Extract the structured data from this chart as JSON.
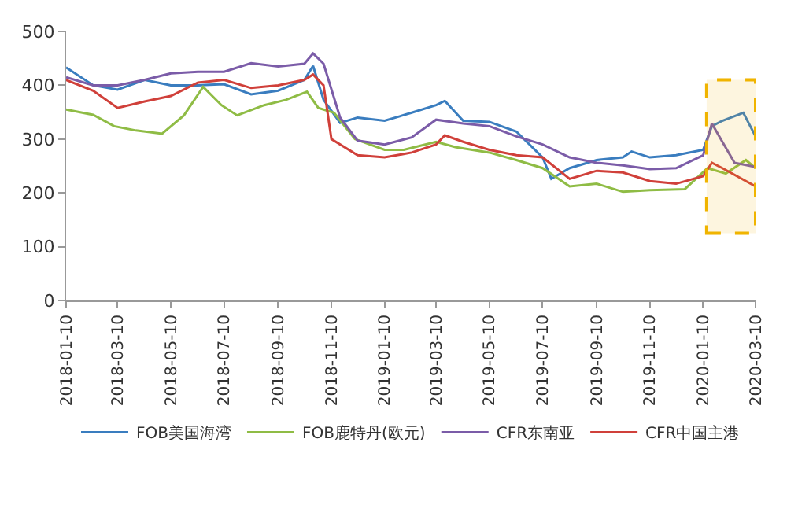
{
  "chart_data": {
    "type": "line",
    "ylim": [
      0,
      500
    ],
    "yticks": [
      0,
      100,
      200,
      300,
      400,
      500
    ],
    "xlim": [
      "2018-01-10",
      "2020-03-10"
    ],
    "xticks": [
      "2018-01-10",
      "2018-03-10",
      "2018-05-10",
      "2018-07-10",
      "2018-09-10",
      "2018-11-10",
      "2019-01-10",
      "2019-03-10",
      "2019-05-10",
      "2019-07-10",
      "2019-09-10",
      "2019-11-10",
      "2020-01-10",
      "2020-03-10"
    ],
    "grid": false,
    "legend": "bottom",
    "marker": "none",
    "line_style": "solid",
    "bands": [
      {
        "axis": "x",
        "from": "2020-01-14",
        "to": "2020-03-10",
        "color": "#f0b400"
      }
    ],
    "series": [
      {
        "name": "FOB美国海湾",
        "color": "#3a7dbf",
        "x": [
          "2018-01-10",
          "2018-02-10",
          "2018-03-10",
          "2018-04-10",
          "2018-05-10",
          "2018-06-10",
          "2018-07-10",
          "2018-08-10",
          "2018-09-10",
          "2018-10-10",
          "2018-10-20",
          "2018-11-01",
          "2018-11-20",
          "2018-12-10",
          "2019-01-10",
          "2019-02-10",
          "2019-03-10",
          "2019-03-20",
          "2019-04-10",
          "2019-05-10",
          "2019-06-10",
          "2019-07-10",
          "2019-07-20",
          "2019-08-10",
          "2019-09-10",
          "2019-10-10",
          "2019-10-20",
          "2019-11-10",
          "2019-12-10",
          "2020-01-10",
          "2020-01-20",
          "2020-02-01",
          "2020-02-25",
          "2020-03-10"
        ],
        "values": [
          433,
          400,
          392,
          410,
          400,
          400,
          402,
          383,
          390,
          410,
          436,
          373,
          330,
          340,
          334,
          349,
          363,
          371,
          334,
          332,
          314,
          266,
          226,
          246,
          261,
          266,
          277,
          266,
          270,
          280,
          324,
          334,
          349,
          305
        ]
      },
      {
        "name": "FOB鹿特丹(欧元)",
        "color": "#8fbc45",
        "x": [
          "2018-01-10",
          "2018-02-10",
          "2018-03-06",
          "2018-03-31",
          "2018-04-30",
          "2018-05-25",
          "2018-06-16",
          "2018-07-07",
          "2018-07-25",
          "2018-08-25",
          "2018-09-19",
          "2018-10-13",
          "2018-10-26",
          "2018-11-13",
          "2018-12-07",
          "2019-01-10",
          "2019-02-01",
          "2019-03-10",
          "2019-04-01",
          "2019-05-10",
          "2019-06-10",
          "2019-07-10",
          "2019-08-10",
          "2019-09-10",
          "2019-10-10",
          "2019-11-10",
          "2019-12-20",
          "2020-01-15",
          "2020-02-05",
          "2020-02-28",
          "2020-03-10"
        ],
        "values": [
          355,
          345,
          324,
          316,
          310,
          344,
          397,
          363,
          344,
          363,
          373,
          388,
          358,
          349,
          300,
          280,
          280,
          295,
          285,
          275,
          261,
          246,
          212,
          217,
          202,
          205,
          207,
          246,
          236,
          261,
          246
        ]
      },
      {
        "name": "CFR东南亚",
        "color": "#7b5ca8",
        "x": [
          "2018-01-10",
          "2018-02-10",
          "2018-03-10",
          "2018-04-10",
          "2018-05-10",
          "2018-06-10",
          "2018-07-10",
          "2018-08-10",
          "2018-09-10",
          "2018-10-10",
          "2018-10-20",
          "2018-11-01",
          "2018-11-20",
          "2018-12-10",
          "2019-01-10",
          "2019-02-10",
          "2019-03-10",
          "2019-04-10",
          "2019-05-10",
          "2019-06-10",
          "2019-07-10",
          "2019-08-10",
          "2019-09-10",
          "2019-10-10",
          "2019-11-10",
          "2019-12-10",
          "2020-01-10",
          "2020-01-20",
          "2020-02-01",
          "2020-02-15",
          "2020-03-10"
        ],
        "values": [
          415,
          400,
          400,
          410,
          422,
          425,
          425,
          441,
          435,
          440,
          459,
          440,
          340,
          297,
          290,
          303,
          336,
          329,
          324,
          305,
          290,
          266,
          256,
          251,
          244,
          246,
          270,
          329,
          295,
          256,
          248
        ]
      },
      {
        "name": "CFR中国主港",
        "color": "#d0403a",
        "x": [
          "2018-01-10",
          "2018-02-10",
          "2018-03-10",
          "2018-04-10",
          "2018-05-10",
          "2018-06-10",
          "2018-07-10",
          "2018-08-10",
          "2018-09-10",
          "2018-10-10",
          "2018-10-20",
          "2018-11-01",
          "2018-11-10",
          "2018-12-10",
          "2019-01-10",
          "2019-02-10",
          "2019-03-10",
          "2019-03-20",
          "2019-04-10",
          "2019-05-10",
          "2019-06-10",
          "2019-07-10",
          "2019-08-10",
          "2019-09-10",
          "2019-10-10",
          "2019-11-10",
          "2019-12-10",
          "2020-01-10",
          "2020-01-20",
          "2020-02-01",
          "2020-03-10"
        ],
        "values": [
          410,
          390,
          358,
          370,
          380,
          405,
          410,
          395,
          400,
          410,
          420,
          400,
          300,
          270,
          266,
          275,
          290,
          307,
          295,
          280,
          270,
          266,
          226,
          241,
          238,
          222,
          217,
          231,
          256,
          246,
          212
        ]
      }
    ]
  }
}
